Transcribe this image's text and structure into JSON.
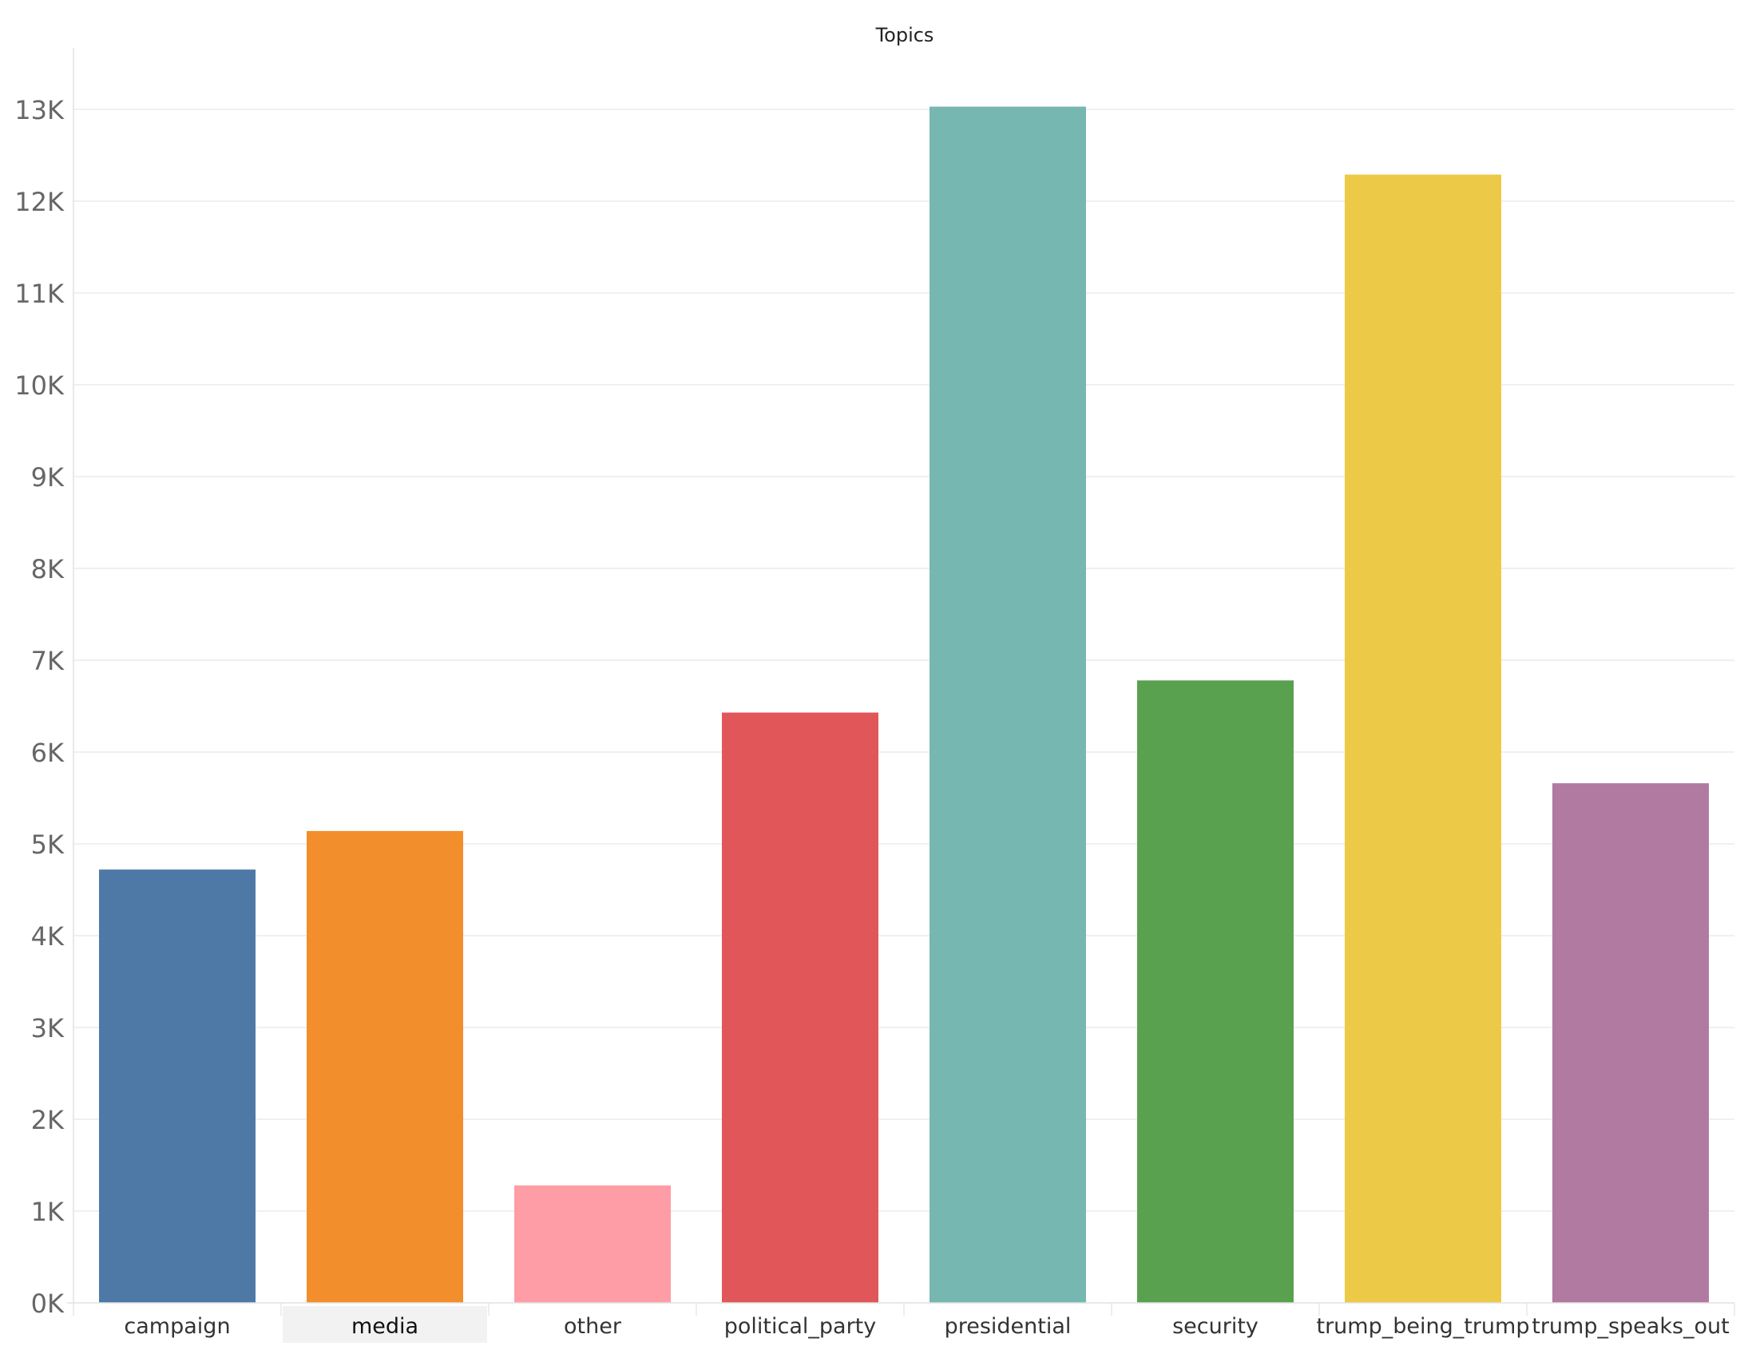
{
  "chart_data": {
    "type": "bar",
    "title": "Topics",
    "xlabel": "",
    "ylabel": "",
    "categories": [
      "campaign",
      "media",
      "other",
      "political_party",
      "presidential",
      "security",
      "trump_being_trump",
      "trump_speaks_out"
    ],
    "values": [
      4720,
      5140,
      1280,
      6430,
      13030,
      6780,
      12290,
      5660
    ],
    "colors": [
      "#4e79a7",
      "#f28e2b",
      "#ff9da7",
      "#e15759",
      "#76b7b2",
      "#59a14f",
      "#edc948",
      "#b07aa1"
    ],
    "ylim": [
      0,
      13500
    ],
    "yticks": [
      0,
      1000,
      2000,
      3000,
      4000,
      5000,
      6000,
      7000,
      8000,
      9000,
      10000,
      11000,
      12000,
      13000
    ],
    "ytick_labels": [
      "0K",
      "1K",
      "2K",
      "3K",
      "4K",
      "5K",
      "6K",
      "7K",
      "8K",
      "9K",
      "10K",
      "11K",
      "12K",
      "13K"
    ],
    "grid": true,
    "highlighted_category": "media"
  }
}
